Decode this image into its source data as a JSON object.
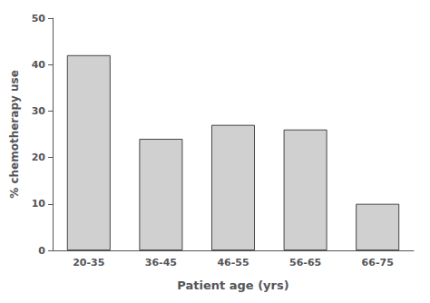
{
  "chart_data": {
    "type": "bar",
    "categories": [
      "20-35",
      "36-45",
      "46-55",
      "56-65",
      "66-75"
    ],
    "values": [
      42,
      24,
      27,
      26,
      10
    ],
    "color": "#d0d0d0",
    "xlabel": "Patient age (yrs)",
    "ylabel": "% chemotherapy use",
    "ylim": [
      0,
      50
    ],
    "yticks": [
      0,
      10,
      20,
      30,
      40,
      50
    ],
    "grid": false
  }
}
